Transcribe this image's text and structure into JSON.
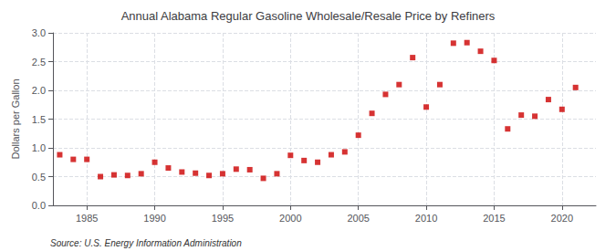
{
  "chart_data": {
    "type": "scatter",
    "title": "Annual Alabama Regular Gasoline Wholesale/Resale Price by Refiners",
    "ylabel": "Dollars per Gallon",
    "annotations": [
      "Source: U.S. Energy Information Administration"
    ],
    "color": "#cc0000",
    "marker": "square",
    "grid": true,
    "xlim": [
      1982.5,
      2022.5
    ],
    "xticks": [
      1985,
      1990,
      1995,
      2000,
      2005,
      2010,
      2015,
      2020
    ],
    "ylim": [
      0.0,
      3.0
    ],
    "yticks": [
      {
        "value": 0.0,
        "label": "0.0"
      },
      0.5,
      {
        "value": 1.0,
        "label": "1.0"
      },
      1.5,
      {
        "value": 2.0,
        "label": "2.0"
      },
      2.5,
      {
        "value": 3.0,
        "label": "3.0"
      }
    ],
    "x": [
      1983,
      1984,
      1985,
      1986,
      1987,
      1988,
      1989,
      1990,
      1991,
      1992,
      1993,
      1994,
      1995,
      1996,
      1997,
      1998,
      1999,
      2000,
      2001,
      2002,
      2003,
      2004,
      2005,
      2006,
      2007,
      2008,
      2009,
      2010,
      2011,
      2012,
      2013,
      2014,
      2015,
      2016,
      2017,
      2018,
      2019,
      2020,
      2021
    ],
    "values": [
      0.88,
      0.8,
      0.8,
      0.5,
      0.53,
      0.52,
      0.55,
      0.75,
      0.65,
      0.58,
      0.56,
      0.52,
      0.55,
      0.63,
      0.62,
      0.47,
      0.55,
      0.87,
      0.78,
      0.75,
      0.88,
      0.93,
      1.22,
      1.6,
      1.93,
      2.1,
      2.57,
      1.71,
      2.1,
      2.82,
      2.83,
      2.68,
      2.52,
      1.33,
      1.57,
      1.55,
      1.84,
      1.67,
      2.05
    ]
  }
}
